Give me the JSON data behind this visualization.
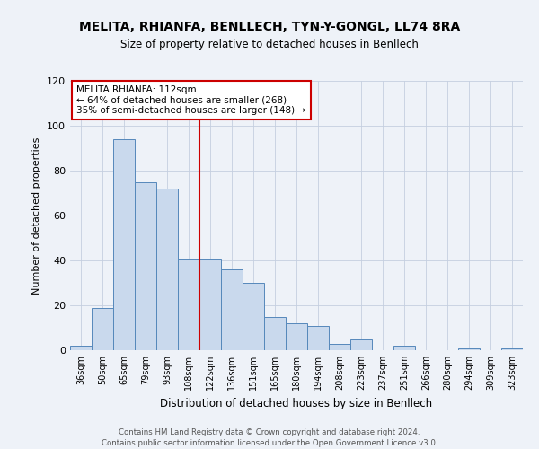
{
  "title": "MELITA, RHIANFA, BENLLECH, TYN-Y-GONGL, LL74 8RA",
  "subtitle": "Size of property relative to detached houses in Benllech",
  "xlabel": "Distribution of detached houses by size in Benllech",
  "ylabel": "Number of detached properties",
  "bar_labels": [
    "36sqm",
    "50sqm",
    "65sqm",
    "79sqm",
    "93sqm",
    "108sqm",
    "122sqm",
    "136sqm",
    "151sqm",
    "165sqm",
    "180sqm",
    "194sqm",
    "208sqm",
    "223sqm",
    "237sqm",
    "251sqm",
    "266sqm",
    "280sqm",
    "294sqm",
    "309sqm",
    "323sqm"
  ],
  "bar_values": [
    2,
    19,
    94,
    75,
    72,
    41,
    41,
    36,
    30,
    15,
    12,
    11,
    3,
    5,
    0,
    2,
    0,
    0,
    1,
    0,
    1
  ],
  "bar_color": "#c9d9ed",
  "bar_edge_color": "#5588bb",
  "marker_line_color": "#cc0000",
  "annotation_line1": "MELITA RHIANFA: 112sqm",
  "annotation_line2": "← 64% of detached houses are smaller (268)",
  "annotation_line3": "35% of semi-detached houses are larger (148) →",
  "annotation_box_color": "#ffffff",
  "annotation_box_edge": "#cc0000",
  "footer_line1": "Contains HM Land Registry data © Crown copyright and database right 2024.",
  "footer_line2": "Contains public sector information licensed under the Open Government Licence v3.0.",
  "ylim": [
    0,
    120
  ],
  "background_color": "#eef2f8"
}
